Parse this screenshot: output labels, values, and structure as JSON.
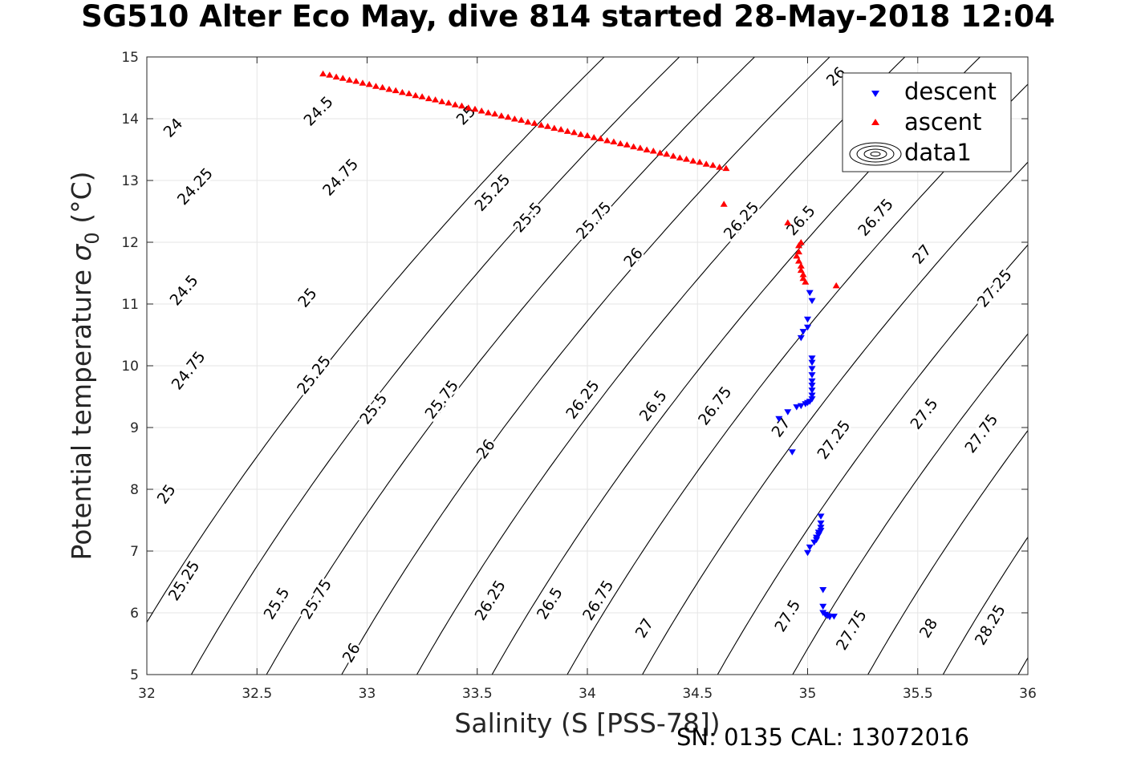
{
  "chart_data": {
    "type": "scatter",
    "title": "SG510 Alter Eco May, dive 814 started 28-May-2018 12:04",
    "xlabel": "Salinity (S [PSS-78])",
    "ylabel_main": "Potential temperature ",
    "ylabel_sym": "σ",
    "ylabel_sub": "0",
    "ylabel_unit": " (°C)",
    "footer": "SN: 0135  CAL: 13072016",
    "xlim": [
      32,
      36
    ],
    "ylim": [
      5,
      15
    ],
    "xticks": [
      32,
      32.5,
      33,
      33.5,
      34,
      34.5,
      35,
      35.5,
      36
    ],
    "yticks": [
      5,
      6,
      7,
      8,
      9,
      10,
      11,
      12,
      13,
      14,
      15
    ],
    "grid": true,
    "legend_position": "top-right",
    "contours": {
      "type": "sigma0 isopycnals",
      "levels": [
        24,
        24.25,
        24.5,
        24.75,
        25,
        25.25,
        25.5,
        25.75,
        26,
        26.25,
        26.5,
        26.75,
        27,
        27.25,
        27.5,
        27.75,
        28,
        28.25
      ],
      "labels": [
        {
          "text": "24",
          "s": 32.12,
          "t": 13.85
        },
        {
          "text": "24.25",
          "s": 32.22,
          "t": 12.9
        },
        {
          "text": "24.5",
          "s": 32.17,
          "t": 11.22
        },
        {
          "text": "24.75",
          "s": 32.19,
          "t": 9.92
        },
        {
          "text": "25",
          "s": 32.09,
          "t": 7.92
        },
        {
          "text": "25.25",
          "s": 32.17,
          "t": 6.52
        },
        {
          "text": "24.5",
          "s": 32.78,
          "t": 14.12
        },
        {
          "text": "24.75",
          "s": 32.88,
          "t": 13.05
        },
        {
          "text": "25",
          "s": 32.73,
          "t": 11.1
        },
        {
          "text": "25.25",
          "s": 32.76,
          "t": 9.85
        },
        {
          "text": "25.5",
          "s": 33.03,
          "t": 9.3
        },
        {
          "text": "25.5",
          "s": 32.59,
          "t": 6.15
        },
        {
          "text": "25.75",
          "s": 32.77,
          "t": 6.22
        },
        {
          "text": "26",
          "s": 32.93,
          "t": 5.35
        },
        {
          "text": "25",
          "s": 33.45,
          "t": 14.05
        },
        {
          "text": "25.25",
          "s": 33.57,
          "t": 12.8
        },
        {
          "text": "25.5",
          "s": 33.73,
          "t": 12.4
        },
        {
          "text": "25.75",
          "s": 34.03,
          "t": 12.35
        },
        {
          "text": "26",
          "s": 34.21,
          "t": 11.75
        },
        {
          "text": "26.25",
          "s": 34.7,
          "t": 12.35
        },
        {
          "text": "26.5",
          "s": 34.97,
          "t": 12.35
        },
        {
          "text": "26.75",
          "s": 35.31,
          "t": 12.4
        },
        {
          "text": "27",
          "s": 35.52,
          "t": 11.8
        },
        {
          "text": "27.25",
          "s": 35.85,
          "t": 11.25
        },
        {
          "text": "26",
          "s": 35.13,
          "t": 14.68
        },
        {
          "text": "25.75",
          "s": 33.34,
          "t": 9.45
        },
        {
          "text": "26",
          "s": 33.54,
          "t": 8.65
        },
        {
          "text": "26.25",
          "s": 33.98,
          "t": 9.45
        },
        {
          "text": "26.5",
          "s": 34.3,
          "t": 9.35
        },
        {
          "text": "26.75",
          "s": 34.58,
          "t": 9.35
        },
        {
          "text": "27",
          "s": 34.88,
          "t": 9.0
        },
        {
          "text": "27.25",
          "s": 35.12,
          "t": 8.8
        },
        {
          "text": "27.5",
          "s": 35.53,
          "t": 9.22
        },
        {
          "text": "27.75",
          "s": 35.79,
          "t": 8.9
        },
        {
          "text": "26.25",
          "s": 33.56,
          "t": 6.2
        },
        {
          "text": "26.5",
          "s": 33.83,
          "t": 6.15
        },
        {
          "text": "26.75",
          "s": 34.05,
          "t": 6.2
        },
        {
          "text": "27",
          "s": 34.26,
          "t": 5.75
        },
        {
          "text": "27.5",
          "s": 34.91,
          "t": 5.95
        },
        {
          "text": "27.75",
          "s": 35.2,
          "t": 5.72
        },
        {
          "text": "28",
          "s": 35.55,
          "t": 5.75
        },
        {
          "text": "28.25",
          "s": 35.83,
          "t": 5.8
        }
      ]
    },
    "series": [
      {
        "name": "descent",
        "marker": "triangle-down",
        "color": "#0000ff",
        "points": [
          [
            35.01,
            11.18
          ],
          [
            35.02,
            11.05
          ],
          [
            35.0,
            10.75
          ],
          [
            35.0,
            10.62
          ],
          [
            34.98,
            10.55
          ],
          [
            34.97,
            10.45
          ],
          [
            35.02,
            10.12
          ],
          [
            35.02,
            10.05
          ],
          [
            35.02,
            9.95
          ],
          [
            35.02,
            9.85
          ],
          [
            35.02,
            9.75
          ],
          [
            35.02,
            9.68
          ],
          [
            35.02,
            9.6
          ],
          [
            35.02,
            9.52
          ],
          [
            35.02,
            9.46
          ],
          [
            35.01,
            9.42
          ],
          [
            35.0,
            9.4
          ],
          [
            34.99,
            9.38
          ],
          [
            34.97,
            9.35
          ],
          [
            34.95,
            9.33
          ],
          [
            34.91,
            9.25
          ],
          [
            34.87,
            9.14
          ],
          [
            34.93,
            8.6
          ],
          [
            35.06,
            7.56
          ],
          [
            35.06,
            7.45
          ],
          [
            35.06,
            7.38
          ],
          [
            35.06,
            7.33
          ],
          [
            35.05,
            7.3
          ],
          [
            35.05,
            7.26
          ],
          [
            35.04,
            7.22
          ],
          [
            35.04,
            7.18
          ],
          [
            35.03,
            7.14
          ],
          [
            35.01,
            7.06
          ],
          [
            35.0,
            6.97
          ],
          [
            35.07,
            6.37
          ],
          [
            35.07,
            6.1
          ],
          [
            35.07,
            6.0
          ],
          [
            35.08,
            5.97
          ],
          [
            35.09,
            5.95
          ],
          [
            35.1,
            5.93
          ],
          [
            35.12,
            5.94
          ]
        ]
      },
      {
        "name": "ascent",
        "marker": "triangle-up",
        "color": "#ff0000",
        "points": [
          [
            32.8,
            14.73
          ],
          [
            32.83,
            14.71
          ],
          [
            32.86,
            14.68
          ],
          [
            32.89,
            14.66
          ],
          [
            32.92,
            14.63
          ],
          [
            32.95,
            14.61
          ],
          [
            32.98,
            14.58
          ],
          [
            33.01,
            14.56
          ],
          [
            33.04,
            14.53
          ],
          [
            33.07,
            14.51
          ],
          [
            33.1,
            14.48
          ],
          [
            33.13,
            14.46
          ],
          [
            33.16,
            14.43
          ],
          [
            33.19,
            14.41
          ],
          [
            33.22,
            14.38
          ],
          [
            33.25,
            14.36
          ],
          [
            33.28,
            14.33
          ],
          [
            33.31,
            14.31
          ],
          [
            33.34,
            14.28
          ],
          [
            33.37,
            14.26
          ],
          [
            33.4,
            14.23
          ],
          [
            33.43,
            14.21
          ],
          [
            33.46,
            14.18
          ],
          [
            33.49,
            14.16
          ],
          [
            33.52,
            14.13
          ],
          [
            33.55,
            14.1
          ],
          [
            33.58,
            14.08
          ],
          [
            33.61,
            14.05
          ],
          [
            33.64,
            14.03
          ],
          [
            33.67,
            14.0
          ],
          [
            33.7,
            13.98
          ],
          [
            33.73,
            13.95
          ],
          [
            33.76,
            13.93
          ],
          [
            33.79,
            13.9
          ],
          [
            33.82,
            13.88
          ],
          [
            33.85,
            13.85
          ],
          [
            33.88,
            13.83
          ],
          [
            33.91,
            13.8
          ],
          [
            33.94,
            13.78
          ],
          [
            33.97,
            13.75
          ],
          [
            34.0,
            13.73
          ],
          [
            34.03,
            13.7
          ],
          [
            34.06,
            13.68
          ],
          [
            34.09,
            13.65
          ],
          [
            34.12,
            13.63
          ],
          [
            34.15,
            13.6
          ],
          [
            34.18,
            13.58
          ],
          [
            34.21,
            13.55
          ],
          [
            34.24,
            13.53
          ],
          [
            34.27,
            13.5
          ],
          [
            34.3,
            13.48
          ],
          [
            34.33,
            13.45
          ],
          [
            34.36,
            13.43
          ],
          [
            34.39,
            13.4
          ],
          [
            34.42,
            13.37
          ],
          [
            34.45,
            13.35
          ],
          [
            34.48,
            13.32
          ],
          [
            34.51,
            13.3
          ],
          [
            34.54,
            13.27
          ],
          [
            34.57,
            13.25
          ],
          [
            34.6,
            13.22
          ],
          [
            34.63,
            13.2
          ],
          [
            34.62,
            12.62
          ],
          [
            34.91,
            12.32
          ],
          [
            34.97,
            12.0
          ],
          [
            34.96,
            11.95
          ],
          [
            34.96,
            11.85
          ],
          [
            34.95,
            11.78
          ],
          [
            34.96,
            11.7
          ],
          [
            34.97,
            11.62
          ],
          [
            34.97,
            11.55
          ],
          [
            34.98,
            11.48
          ],
          [
            34.98,
            11.42
          ],
          [
            34.99,
            11.36
          ],
          [
            35.13,
            11.3
          ]
        ]
      },
      {
        "name": "data1",
        "marker": "contour"
      }
    ]
  }
}
